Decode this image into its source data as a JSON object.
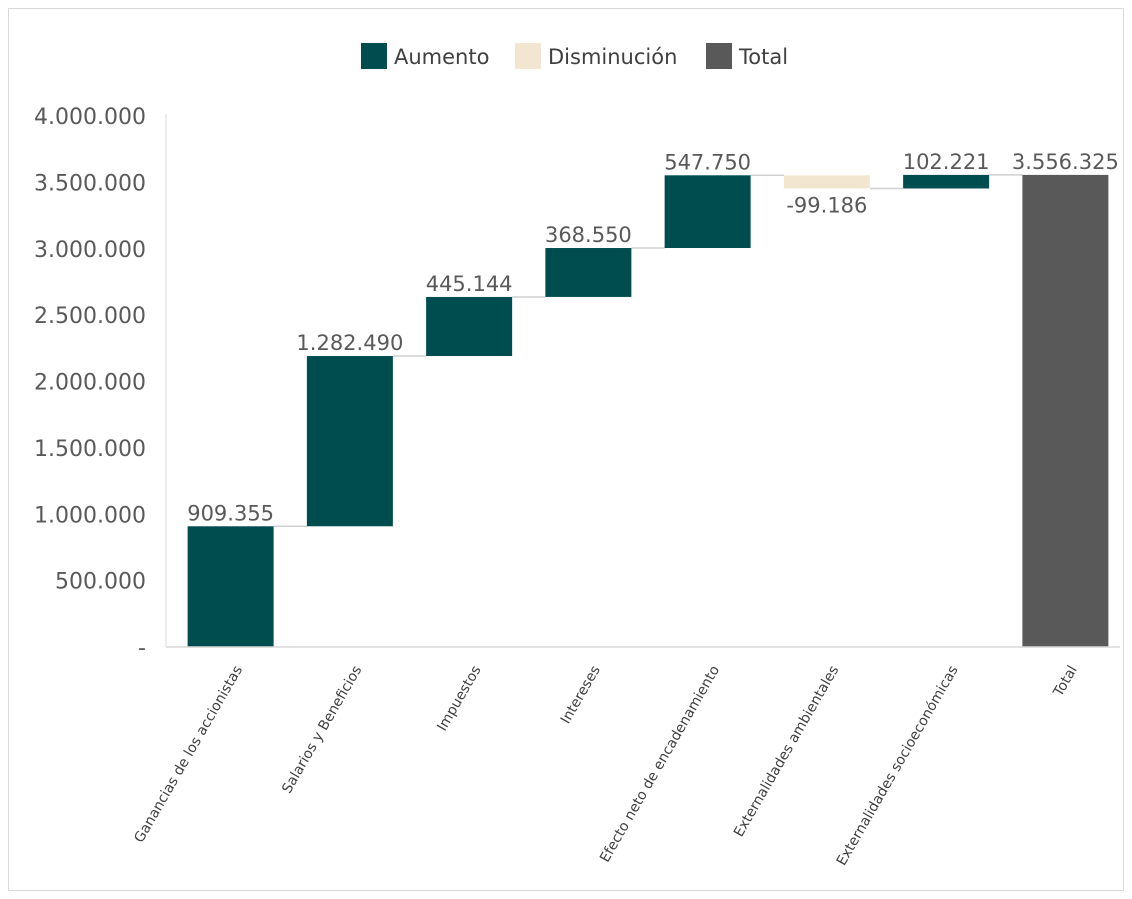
{
  "chart_data": {
    "type": "waterfall",
    "title": "",
    "xlabel": "",
    "ylabel": "",
    "ylim": [
      0,
      4000000
    ],
    "yticks": [
      0,
      500000,
      1000000,
      1500000,
      2000000,
      2500000,
      3000000,
      3500000,
      4000000
    ],
    "ytick_labels": [
      "-",
      "500.000",
      "1.000.000",
      "1.500.000",
      "2.000.000",
      "2.500.000",
      "3.000.000",
      "3.500.000",
      "4.000.000"
    ],
    "grid": false,
    "legend_position": "top-center",
    "legend": [
      {
        "name": "Aumento",
        "color": "#004d50"
      },
      {
        "name": "Disminución",
        "color": "#f2e6d0"
      },
      {
        "name": "Total",
        "color": "#595959"
      }
    ],
    "categories": [
      "Ganancias de los accionistas",
      "Salarios y Beneficios",
      "Impuestos",
      "Intereses",
      "Efecto neto de encadenamiento",
      "Externalidades ambientales",
      "Externalidades socioeconómicas",
      "Total"
    ],
    "values": [
      909355,
      1282490,
      445144,
      368550,
      547750,
      -99186,
      102221,
      3556325
    ],
    "value_labels": [
      "909.355",
      "1.282.490",
      "445.144",
      "368.550",
      "547.750",
      "-99.186",
      "102.221",
      "3.556.325"
    ],
    "kinds": [
      "increase",
      "increase",
      "increase",
      "increase",
      "increase",
      "decrease",
      "increase",
      "total"
    ]
  }
}
